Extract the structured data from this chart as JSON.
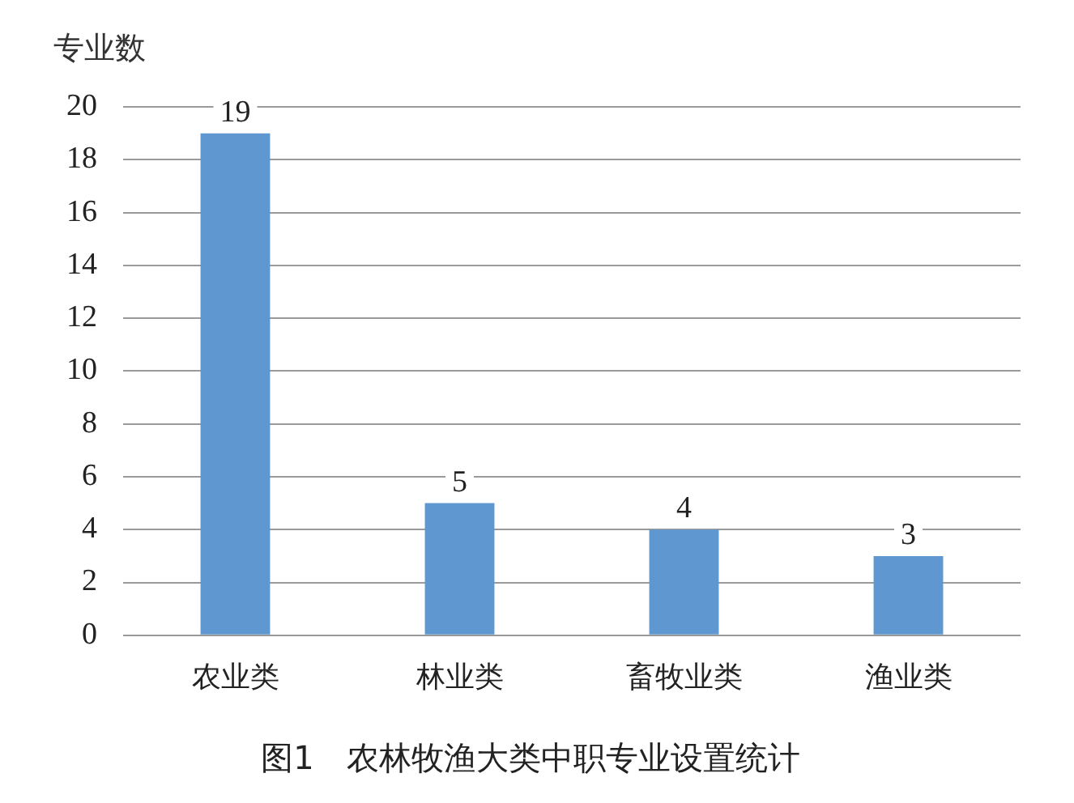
{
  "chart_data": {
    "type": "bar",
    "title": "图1　农林牧渔大类中职专业设置统计",
    "ylabel": "专业数",
    "categories": [
      "农业类",
      "林业类",
      "畜牧业类",
      "渔业类"
    ],
    "values": [
      19,
      5,
      4,
      3
    ],
    "color": "#5f98d0",
    "ylim": [
      0,
      20
    ],
    "yticks": [
      0,
      2,
      4,
      6,
      8,
      10,
      12,
      14,
      16,
      18,
      20
    ],
    "grid": "y",
    "data_labels": true
  }
}
